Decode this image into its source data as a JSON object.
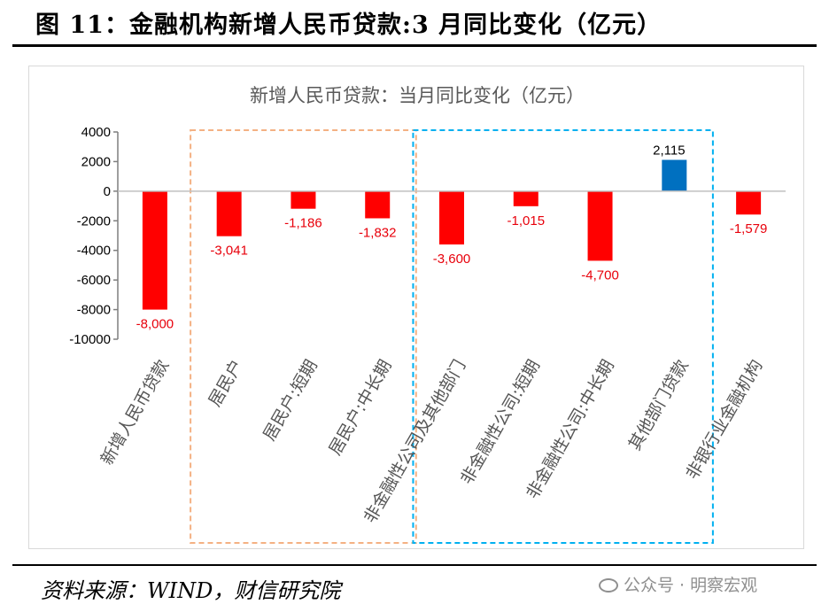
{
  "figure_title": "图 11：金融机构新增人民币贷款:3 月同比变化（亿元）",
  "source_note": "资料来源：WIND，财信研究院",
  "watermark": "公众号 · 明察宏观",
  "watermark_icon": "wechat-icon",
  "colors": {
    "negative": "#ff0000",
    "positive": "#0070c0",
    "box_orange": "#f4b183",
    "box_blue": "#00b0f0"
  },
  "chart_data": {
    "type": "bar",
    "title": "新增人民币贷款：当月同比变化（亿元）",
    "categories": [
      "新增人民币贷款",
      "居民户",
      "居民户:短期",
      "居民户:中长期",
      "非金融性公司及其他部门",
      "非金融性公司:短期",
      "非金融性公司:中长期",
      "其他部门贷款",
      "非银行业金融机构"
    ],
    "values": [
      -8000,
      -3041,
      -1186,
      -1832,
      -3600,
      -1015,
      -4700,
      2115,
      -1579
    ],
    "data_labels": [
      "-8,000",
      "-3,041",
      "-1,186",
      "-1,832",
      "-3,600",
      "-1,015",
      "-4,700",
      "2,115",
      "-1,579"
    ],
    "y_ticks": [
      "4000",
      "2000",
      "0",
      "-2000",
      "-4000",
      "-6000",
      "-8000",
      "-10000"
    ],
    "ylim": [
      -10000,
      4000
    ],
    "grid": false,
    "legend": "none",
    "highlight_groups": [
      {
        "categories": [
          1,
          3
        ],
        "color": "orange",
        "style": "dashed"
      },
      {
        "categories": [
          4,
          7
        ],
        "color": "blue",
        "style": "dashed"
      }
    ]
  }
}
